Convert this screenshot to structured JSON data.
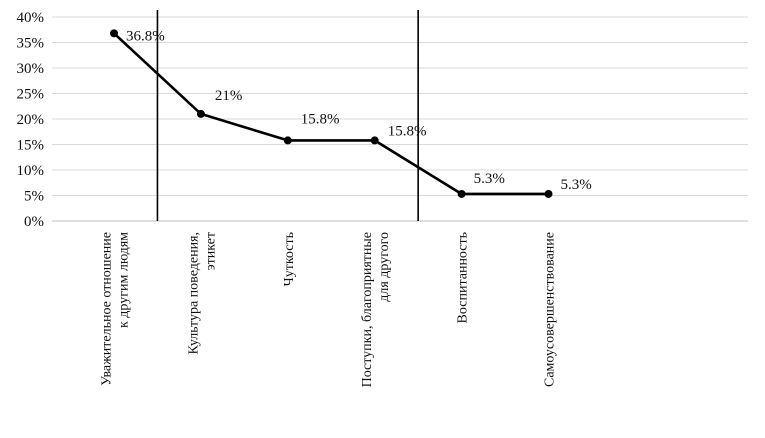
{
  "chart_data": {
    "type": "line",
    "title": "",
    "xlabel": "",
    "ylabel": "",
    "ylim": [
      0,
      40
    ],
    "y_ticks": [
      "0%",
      "5%",
      "10%",
      "15%",
      "20%",
      "25%",
      "30%",
      "35%",
      "40%"
    ],
    "grid": true,
    "legend": "none",
    "categories": [
      [
        "Уважительное отношение",
        "к другим людям"
      ],
      [
        "Культура поведения,",
        "этикет"
      ],
      [
        "Чуткость"
      ],
      [
        "Поступки, благоприятные",
        "для другого"
      ],
      [
        "Воспитанность"
      ],
      [
        "Самоусовершенствование"
      ]
    ],
    "values": [
      36.8,
      21,
      15.8,
      15.8,
      5.3,
      5.3
    ],
    "data_labels": [
      "36.8%",
      "21%",
      "15.8%",
      "15.8%",
      "5.3%",
      "5.3%"
    ],
    "separators_between": [
      [
        0,
        1
      ],
      [
        3,
        4
      ]
    ],
    "colors": {
      "line": "#000000",
      "grid": "#d9d9d9",
      "axis": "#bfbfbf"
    }
  }
}
